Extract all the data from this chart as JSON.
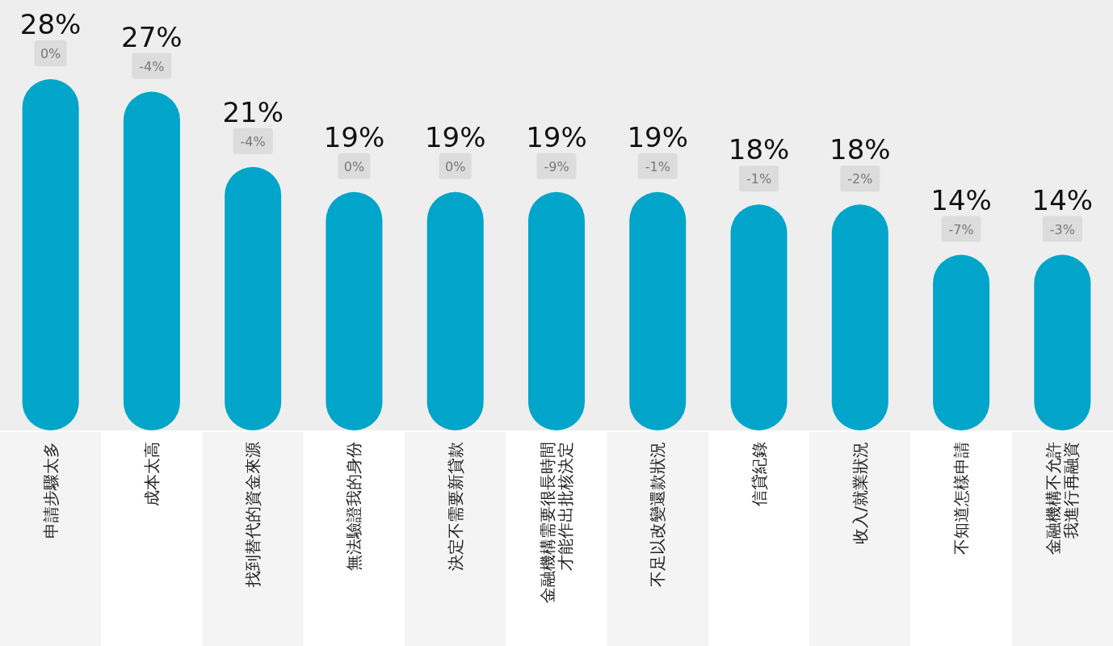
{
  "chart_data": {
    "type": "bar",
    "color": "#00a5c9",
    "categories": [
      "申請步驟太多",
      "成本太高",
      "找到替代的資金來源",
      "無法驗證我的身份",
      "決定不需要新貸款",
      "金融機構需要很長時間才能作出批核決定",
      "不足以改變還款狀況",
      "信貸紀錄",
      "收入/就業狀況",
      "不知道怎樣申請",
      "金融機構不允許我進行再融資"
    ],
    "values": [
      28,
      27,
      21,
      19,
      19,
      19,
      19,
      18,
      18,
      14,
      14
    ],
    "value_labels": [
      "28%",
      "27%",
      "21%",
      "19%",
      "19%",
      "19%",
      "19%",
      "18%",
      "18%",
      "14%",
      "14%"
    ],
    "annotations": [
      "0%",
      "-4%",
      "-4%",
      "0%",
      "0%",
      "-9%",
      "-1%",
      "-1%",
      "-2%",
      "-7%",
      "-3%"
    ]
  }
}
